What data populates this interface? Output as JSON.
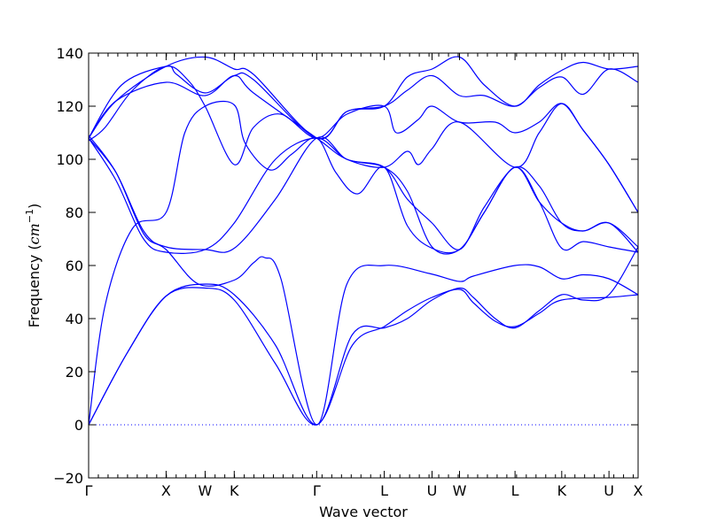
{
  "chart_data": {
    "type": "line",
    "title": "",
    "xlabel": "Wave vector",
    "ylabel": "Frequency (cm⁻¹)",
    "ylabel_main": "Frequency (",
    "ylabel_unit": "cm",
    "ylabel_exp": "−1",
    "ylabel_close": ")",
    "ylim": [
      -20,
      140
    ],
    "yticks": [
      -20,
      0,
      20,
      40,
      60,
      80,
      100,
      120,
      140
    ],
    "xlim": [
      0,
      1
    ],
    "high_symmetry_points": [
      {
        "label": "Γ",
        "x": 0.0
      },
      {
        "label": "X",
        "x": 0.141
      },
      {
        "label": "W",
        "x": 0.212
      },
      {
        "label": "K",
        "x": 0.265
      },
      {
        "label": "Γ",
        "x": 0.415
      },
      {
        "label": "L",
        "x": 0.538
      },
      {
        "label": "U",
        "x": 0.625
      },
      {
        "label": "W",
        "x": 0.675
      },
      {
        "label": "L",
        "x": 0.776
      },
      {
        "label": "K",
        "x": 0.861
      },
      {
        "label": "U",
        "x": 0.947
      },
      {
        "label": "X",
        "x": 1.0
      }
    ],
    "minor_tick_step": 0.0177,
    "zero_line": {
      "y": 0,
      "style": "dotted"
    },
    "grid": false,
    "line_color": "#0000ff",
    "series": [
      {
        "values": [
          [
            0,
            0
          ],
          [
            0.07,
            27
          ],
          [
            0.141,
            48.5
          ],
          [
            0.212,
            51.5
          ],
          [
            0.265,
            47
          ],
          [
            0.34,
            23
          ],
          [
            0.415,
            0
          ],
          [
            0.48,
            30
          ],
          [
            0.538,
            37
          ],
          [
            0.58,
            43
          ],
          [
            0.625,
            48
          ],
          [
            0.675,
            51
          ],
          [
            0.7,
            46
          ],
          [
            0.74,
            39
          ],
          [
            0.776,
            37
          ],
          [
            0.82,
            42
          ],
          [
            0.861,
            47
          ],
          [
            0.947,
            48
          ],
          [
            1.0,
            49
          ]
        ]
      },
      {
        "values": [
          [
            0,
            0
          ],
          [
            0.07,
            27
          ],
          [
            0.141,
            48.5
          ],
          [
            0.212,
            53
          ],
          [
            0.265,
            49
          ],
          [
            0.34,
            30
          ],
          [
            0.415,
            0
          ],
          [
            0.48,
            34
          ],
          [
            0.538,
            36.5
          ],
          [
            0.58,
            40
          ],
          [
            0.625,
            47
          ],
          [
            0.675,
            51.5
          ],
          [
            0.7,
            48
          ],
          [
            0.74,
            40
          ],
          [
            0.776,
            36.5
          ],
          [
            0.82,
            43
          ],
          [
            0.861,
            49
          ],
          [
            0.9,
            47
          ],
          [
            0.947,
            49
          ],
          [
            1.0,
            67
          ]
        ]
      },
      {
        "values": [
          [
            0,
            0
          ],
          [
            0.03,
            45
          ],
          [
            0.08,
            74
          ],
          [
            0.141,
            80
          ],
          [
            0.175,
            110
          ],
          [
            0.212,
            120
          ],
          [
            0.265,
            120.5
          ],
          [
            0.285,
            106
          ],
          [
            0.33,
            96
          ],
          [
            0.37,
            102
          ],
          [
            0.415,
            108
          ],
          [
            0.45,
            95
          ],
          [
            0.49,
            87
          ],
          [
            0.538,
            97
          ],
          [
            0.58,
            75
          ],
          [
            0.625,
            66.5
          ],
          [
            0.675,
            66
          ],
          [
            0.72,
            80
          ],
          [
            0.776,
            97
          ],
          [
            0.82,
            84
          ],
          [
            0.861,
            66.5
          ],
          [
            0.9,
            69
          ],
          [
            0.947,
            67
          ],
          [
            1.0,
            65
          ]
        ]
      },
      {
        "values": [
          [
            0,
            108
          ],
          [
            0.05,
            95
          ],
          [
            0.1,
            73
          ],
          [
            0.141,
            67
          ],
          [
            0.212,
            66
          ],
          [
            0.265,
            66.5
          ],
          [
            0.34,
            85
          ],
          [
            0.415,
            108
          ],
          [
            0.47,
            100
          ],
          [
            0.538,
            97
          ],
          [
            0.58,
            88
          ],
          [
            0.625,
            67
          ],
          [
            0.675,
            66
          ],
          [
            0.72,
            80
          ],
          [
            0.776,
            97
          ],
          [
            0.82,
            84
          ],
          [
            0.861,
            76
          ],
          [
            0.9,
            73
          ],
          [
            0.947,
            76
          ],
          [
            1.0,
            65
          ]
        ]
      },
      {
        "values": [
          [
            0,
            108
          ],
          [
            0.05,
            92
          ],
          [
            0.1,
            70
          ],
          [
            0.141,
            65
          ],
          [
            0.212,
            66
          ],
          [
            0.265,
            76
          ],
          [
            0.34,
            100
          ],
          [
            0.415,
            108
          ],
          [
            0.47,
            100
          ],
          [
            0.538,
            97
          ],
          [
            0.58,
            85
          ],
          [
            0.625,
            76
          ],
          [
            0.675,
            66
          ],
          [
            0.72,
            82
          ],
          [
            0.776,
            97
          ],
          [
            0.82,
            90
          ],
          [
            0.861,
            76
          ],
          [
            0.9,
            73
          ],
          [
            0.947,
            76
          ],
          [
            1.0,
            67
          ]
        ]
      },
      {
        "values": [
          [
            0,
            109
          ],
          [
            0.05,
            95
          ],
          [
            0.1,
            72
          ],
          [
            0.141,
            66
          ],
          [
            0.2,
            53
          ],
          [
            0.265,
            54.5
          ],
          [
            0.3,
            61
          ],
          [
            0.32,
            63
          ],
          [
            0.35,
            55
          ],
          [
            0.415,
            0
          ],
          [
            0.47,
            53
          ],
          [
            0.538,
            60
          ],
          [
            0.62,
            57
          ],
          [
            0.675,
            54
          ],
          [
            0.7,
            56
          ],
          [
            0.776,
            60
          ],
          [
            0.82,
            59.5
          ],
          [
            0.861,
            55
          ],
          [
            0.9,
            56.5
          ],
          [
            0.947,
            55
          ],
          [
            1.0,
            49
          ]
        ]
      },
      {
        "values": [
          [
            0,
            107
          ],
          [
            0.03,
            112
          ],
          [
            0.08,
            126
          ],
          [
            0.141,
            135
          ],
          [
            0.18,
            130
          ],
          [
            0.212,
            120
          ],
          [
            0.265,
            98
          ],
          [
            0.3,
            112
          ],
          [
            0.35,
            117
          ],
          [
            0.415,
            108
          ],
          [
            0.47,
            117
          ],
          [
            0.538,
            120
          ],
          [
            0.56,
            110
          ],
          [
            0.6,
            115
          ],
          [
            0.625,
            120
          ],
          [
            0.675,
            114
          ],
          [
            0.74,
            114
          ],
          [
            0.776,
            110
          ],
          [
            0.82,
            114
          ],
          [
            0.861,
            121
          ],
          [
            0.9,
            111
          ],
          [
            0.947,
            98
          ],
          [
            1.0,
            80
          ]
        ]
      },
      {
        "values": [
          [
            0,
            108
          ],
          [
            0.05,
            122
          ],
          [
            0.141,
            129
          ],
          [
            0.212,
            124
          ],
          [
            0.265,
            131.5
          ],
          [
            0.3,
            125
          ],
          [
            0.415,
            108
          ],
          [
            0.47,
            100
          ],
          [
            0.538,
            97
          ],
          [
            0.58,
            103
          ],
          [
            0.6,
            98
          ],
          [
            0.625,
            104
          ],
          [
            0.675,
            114
          ],
          [
            0.776,
            97
          ],
          [
            0.82,
            110
          ],
          [
            0.861,
            121
          ],
          [
            0.9,
            111
          ],
          [
            0.947,
            98
          ],
          [
            1.0,
            80
          ]
        ]
      },
      {
        "values": [
          [
            0,
            108
          ],
          [
            0.05,
            122
          ],
          [
            0.141,
            135
          ],
          [
            0.212,
            138.5
          ],
          [
            0.265,
            134
          ],
          [
            0.3,
            132
          ],
          [
            0.415,
            108
          ],
          [
            0.47,
            118
          ],
          [
            0.538,
            120
          ],
          [
            0.58,
            131
          ],
          [
            0.625,
            134
          ],
          [
            0.675,
            138.5
          ],
          [
            0.72,
            128
          ],
          [
            0.776,
            120
          ],
          [
            0.82,
            128
          ],
          [
            0.861,
            133.5
          ],
          [
            0.9,
            136.5
          ],
          [
            0.947,
            134
          ],
          [
            1.0,
            135
          ]
        ]
      },
      {
        "values": [
          [
            0,
            108
          ],
          [
            0.06,
            128
          ],
          [
            0.141,
            135
          ],
          [
            0.16,
            132
          ],
          [
            0.212,
            125
          ],
          [
            0.265,
            131.5
          ],
          [
            0.3,
            130
          ],
          [
            0.415,
            108
          ],
          [
            0.47,
            118
          ],
          [
            0.538,
            120
          ],
          [
            0.58,
            126
          ],
          [
            0.625,
            131.5
          ],
          [
            0.675,
            124
          ],
          [
            0.72,
            124
          ],
          [
            0.776,
            120
          ],
          [
            0.82,
            127
          ],
          [
            0.861,
            131
          ],
          [
            0.9,
            124.5
          ],
          [
            0.947,
            134
          ],
          [
            1.0,
            129
          ]
        ]
      }
    ]
  }
}
